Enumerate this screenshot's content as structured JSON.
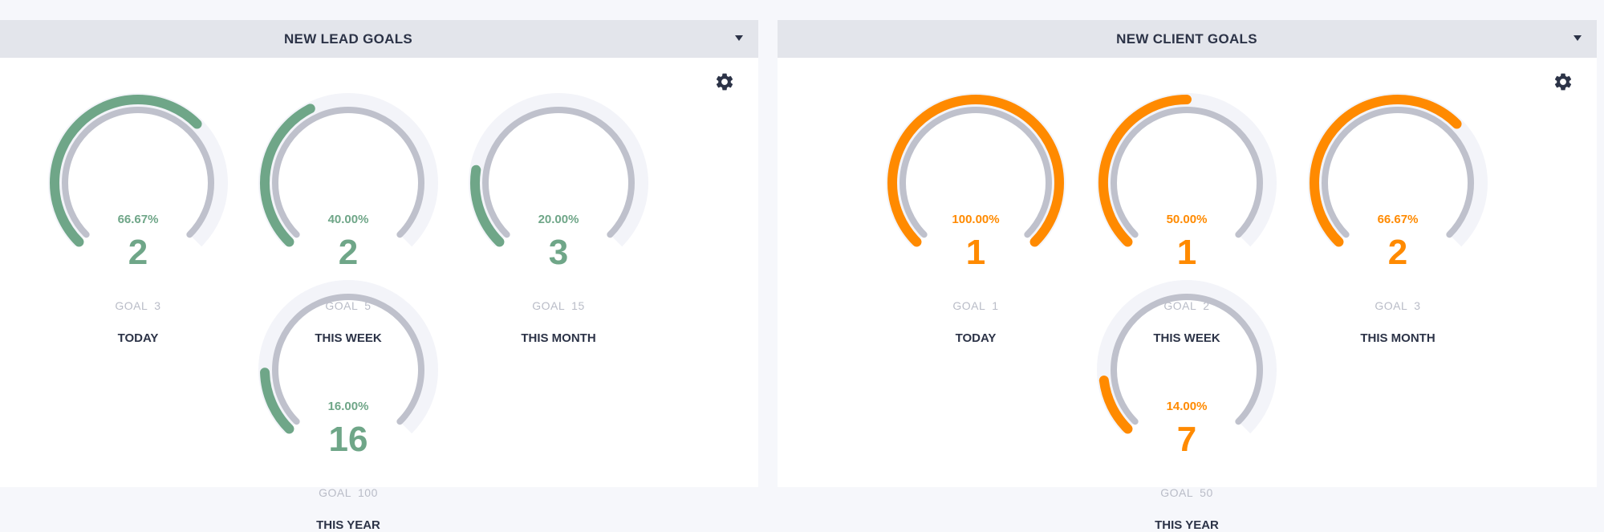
{
  "panels": {
    "leads": {
      "title": "NEW LEAD GOALS",
      "accent": "#6fa688",
      "gauges": [
        {
          "percent": "66.67%",
          "value": "2",
          "goal_label": "GOAL",
          "goal": "3",
          "period": "TODAY",
          "fraction": 0.6667
        },
        {
          "percent": "40.00%",
          "value": "2",
          "goal_label": "GOAL",
          "goal": "5",
          "period": "THIS WEEK",
          "fraction": 0.4
        },
        {
          "percent": "20.00%",
          "value": "3",
          "goal_label": "GOAL",
          "goal": "15",
          "period": "THIS MONTH",
          "fraction": 0.2
        },
        {
          "percent": "16.00%",
          "value": "16",
          "goal_label": "GOAL",
          "goal": "100",
          "period": "THIS YEAR",
          "fraction": 0.16
        }
      ]
    },
    "clients": {
      "title": "NEW CLIENT GOALS",
      "accent": "#ff8a00",
      "gauges": [
        {
          "percent": "100.00%",
          "value": "1",
          "goal_label": "GOAL",
          "goal": "1",
          "period": "TODAY",
          "fraction": 1.0
        },
        {
          "percent": "50.00%",
          "value": "1",
          "goal_label": "GOAL",
          "goal": "2",
          "period": "THIS WEEK",
          "fraction": 0.5
        },
        {
          "percent": "66.67%",
          "value": "2",
          "goal_label": "GOAL",
          "goal": "3",
          "period": "THIS MONTH",
          "fraction": 0.6667
        },
        {
          "percent": "14.00%",
          "value": "7",
          "goal_label": "GOAL",
          "goal": "50",
          "period": "THIS YEAR",
          "fraction": 0.14
        }
      ]
    }
  },
  "icons": {
    "settings": "gear-icon",
    "dropdown": "chevron-down-icon"
  }
}
